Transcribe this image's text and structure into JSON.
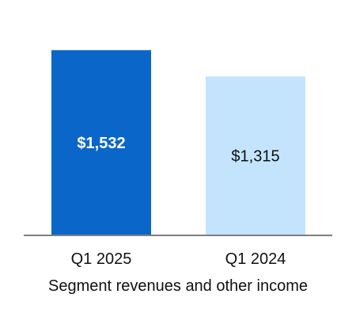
{
  "chart_data": {
    "type": "bar",
    "categories": [
      "Q1 2025",
      "Q1 2024"
    ],
    "values": [
      1532,
      1315
    ],
    "value_labels": [
      "$1,532",
      "$1,315"
    ],
    "bar_colors": [
      "#0A66C8",
      "#C3E4FC"
    ],
    "label_colors": [
      "#FFFFFF",
      "#111111"
    ],
    "label_bold": [
      true,
      false
    ],
    "xlabel": "Segment revenues and other income",
    "ylabel": "",
    "ylim": [
      0,
      1750
    ],
    "grid": false,
    "axis_color": "#7F7F7F"
  }
}
